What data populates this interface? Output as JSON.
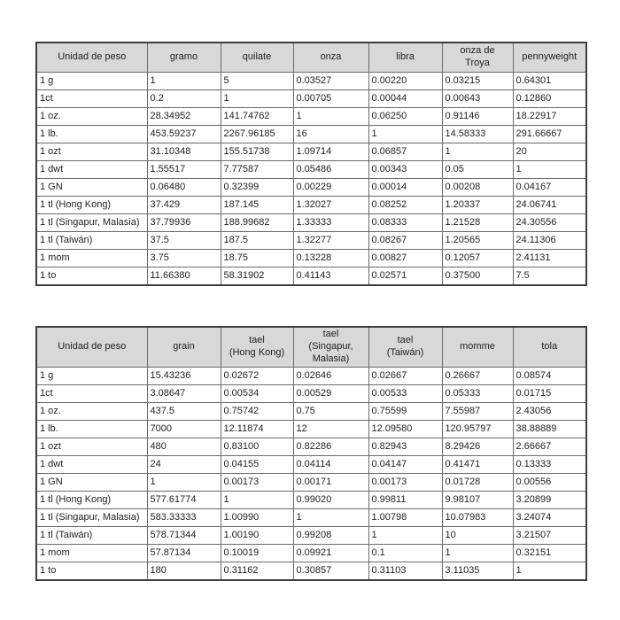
{
  "colors": {
    "background": "#ffffff",
    "header_bg": "#d8d8d8",
    "cell_border": "#6a6a6a",
    "outer_border": "#3d3d3d",
    "text": "#222222"
  },
  "table1": {
    "columns": [
      "Unidad de peso",
      "gramo",
      "quilate",
      "onza",
      "libra",
      "onza de\nTroya",
      "pennyweight"
    ],
    "rows": [
      [
        "1 g",
        "1",
        "5",
        "0.03527",
        "0.00220",
        "0.03215",
        "0.64301"
      ],
      [
        "1ct",
        "0.2",
        "1",
        "0.00705",
        "0.00044",
        "0.00643",
        "0.12860"
      ],
      [
        "1 oz.",
        "28.34952",
        "141.74762",
        "1",
        "0.06250",
        "0.91146",
        "18.22917"
      ],
      [
        "1 lb.",
        "453.59237",
        "2267.96185",
        "16",
        "1",
        "14.58333",
        "291.66667"
      ],
      [
        "1 ozt",
        "31.10348",
        "155.51738",
        "1.09714",
        "0.06857",
        "1",
        "20"
      ],
      [
        "1 dwt",
        "1.55517",
        "7.77587",
        "0.05486",
        "0.00343",
        "0.05",
        "1"
      ],
      [
        "1 GN",
        "0.06480",
        "0.32399",
        "0.00229",
        "0.00014",
        "0.00208",
        "0.04167"
      ],
      [
        "1 tl (Hong Kong)",
        "37.429",
        "187.145",
        "1.32027",
        "0.08252",
        "1.20337",
        "24.06741"
      ],
      [
        "1 tl (Singapur, Malasia)",
        "37.79936",
        "188.99682",
        "1.33333",
        "0.08333",
        "1.21528",
        "24.30556"
      ],
      [
        "1 tl (Taiwán)",
        "37.5",
        "187.5",
        "1.32277",
        "0.08267",
        "1.20565",
        "24.11306"
      ],
      [
        "1 mom",
        "3.75",
        "18.75",
        "0.13228",
        "0.00827",
        "0.12057",
        "2.41131"
      ],
      [
        "1 to",
        "11.66380",
        "58.31902",
        "0.41143",
        "0.02571",
        "0.37500",
        "7.5"
      ]
    ]
  },
  "table2": {
    "columns": [
      "Unidad de peso",
      "grain",
      "tael\n(Hong Kong)",
      "tael\n(Singapur,\nMalasia)",
      "tael\n(Taiwán)",
      "momme",
      "tola"
    ],
    "rows": [
      [
        "1 g",
        "15.43236",
        "0.02672",
        "0.02646",
        "0.02667",
        "0.26667",
        "0.08574"
      ],
      [
        "1ct",
        "3.08647",
        "0.00534",
        "0.00529",
        "0.00533",
        "0.05333",
        "0.01715"
      ],
      [
        "1 oz.",
        "437.5",
        "0.75742",
        "0.75",
        "0.75599",
        "7.55987",
        "2.43056"
      ],
      [
        "1 lb.",
        "7000",
        "12.11874",
        "12",
        "12.09580",
        "120.95797",
        "38.88889"
      ],
      [
        "1 ozt",
        "480",
        "0.83100",
        "0.82286",
        "0.82943",
        "8.29426",
        "2.66667"
      ],
      [
        "1 dwt",
        "24",
        "0.04155",
        "0.04114",
        "0.04147",
        "0.41471",
        "0.13333"
      ],
      [
        "1 GN",
        "1",
        "0.00173",
        "0.00171",
        "0.00173",
        "0.01728",
        "0.00556"
      ],
      [
        "1 tl (Hong Kong)",
        "577.61774",
        "1",
        "0.99020",
        "0.99811",
        "9.98107",
        "3.20899"
      ],
      [
        "1 tl (Singapur, Malasia)",
        "583.33333",
        "1.00990",
        "1",
        "1.00798",
        "10.07983",
        "3.24074"
      ],
      [
        "1 tl (Taiwán)",
        "578.71344",
        "1.00190",
        "0.99208",
        "1",
        "10",
        "3.21507"
      ],
      [
        "1 mom",
        "57.87134",
        "0.10019",
        "0.09921",
        "0.1",
        "1",
        "0.32151"
      ],
      [
        "1 to",
        "180",
        "0.31162",
        "0.30857",
        "0.31103",
        "3.11035",
        "1"
      ]
    ]
  }
}
